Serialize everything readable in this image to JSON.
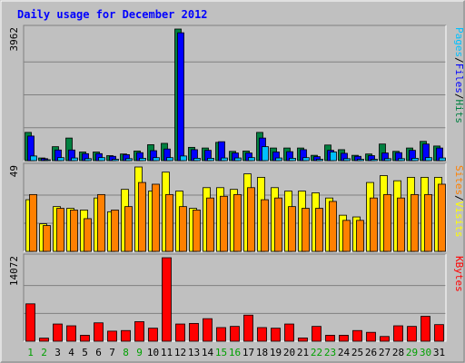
{
  "chart_data": {
    "type": "bar",
    "title": "Daily usage for December 2012",
    "days": [
      "1",
      "2",
      "3",
      "4",
      "5",
      "6",
      "7",
      "8",
      "9",
      "10",
      "11",
      "12",
      "13",
      "14",
      "15",
      "16",
      "17",
      "18",
      "19",
      "20",
      "21",
      "22",
      "23",
      "24",
      "25",
      "26",
      "27",
      "28",
      "29",
      "30",
      "31"
    ],
    "weekend_days": [
      "1",
      "2",
      "8",
      "9",
      "15",
      "16",
      "22",
      "23",
      "29",
      "30"
    ],
    "panels": [
      {
        "name": "hits-files-pages",
        "ymax_label": "3962",
        "ymax": 3962,
        "side_labels": [
          "Pages",
          "/",
          "Files",
          "/",
          "Hits"
        ],
        "series": [
          {
            "name": "Hits",
            "color": "#008040",
            "values": [
              850,
              80,
              420,
              680,
              260,
              260,
              150,
              200,
              290,
              480,
              520,
              3962,
              400,
              380,
              550,
              280,
              290,
              850,
              380,
              380,
              380,
              160,
              470,
              330,
              160,
              200,
              500,
              280,
              380,
              580,
              440
            ]
          },
          {
            "name": "Files",
            "color": "#0000ff",
            "values": [
              740,
              60,
              320,
              320,
              210,
              210,
              130,
              180,
              240,
              300,
              350,
              3850,
              330,
              310,
              570,
              230,
              230,
              680,
              260,
              270,
              330,
              120,
              310,
              220,
              130,
              150,
              230,
              240,
              310,
              500,
              380
            ]
          },
          {
            "name": "Pages",
            "color": "#00c0ff",
            "values": [
              140,
              20,
              90,
              80,
              60,
              90,
              40,
              60,
              70,
              90,
              90,
              140,
              70,
              70,
              80,
              80,
              90,
              420,
              80,
              70,
              90,
              40,
              260,
              60,
              40,
              40,
              60,
              60,
              70,
              90,
              80
            ]
          }
        ]
      },
      {
        "name": "visits-sites",
        "ymax_label": "49",
        "ymax": 49,
        "side_labels": [
          "Sites",
          "/",
          "Visits"
        ],
        "series": [
          {
            "name": "Visits",
            "color": "#ffff00",
            "values": [
              30,
              16,
              26,
              25,
              24,
              31,
              23,
              36,
              49,
              35,
              46,
              35,
              25,
              37,
              37,
              36,
              45,
              43,
              37,
              35,
              35,
              34,
              31,
              21,
              20,
              40,
              44,
              41,
              43,
              43,
              43
            ]
          },
          {
            "name": "Sites",
            "color": "#ff8000",
            "values": [
              33,
              15,
              25,
              24,
              19,
              33,
              24,
              26,
              40,
              39,
              33,
              26,
              24,
              31,
              32,
              33,
              37,
              30,
              31,
              26,
              25,
              25,
              29,
              18,
              18,
              31,
              33,
              31,
              33,
              33,
              39
            ]
          }
        ]
      },
      {
        "name": "kbytes",
        "ymax_label": "14072",
        "ymax": 14072,
        "side_labels": [
          "KBytes"
        ],
        "series": [
          {
            "name": "KBytes",
            "color": "#ff0000",
            "values": [
              6300,
              520,
              2900,
              2600,
              1000,
              3100,
              1700,
              1800,
              3300,
              2200,
              14072,
              2900,
              3000,
              3800,
              2300,
              2500,
              4400,
              2300,
              2200,
              2900,
              550,
              2500,
              1000,
              1000,
              1800,
              1500,
              800,
              2600,
              2500,
              4200,
              2800
            ]
          }
        ]
      }
    ]
  }
}
